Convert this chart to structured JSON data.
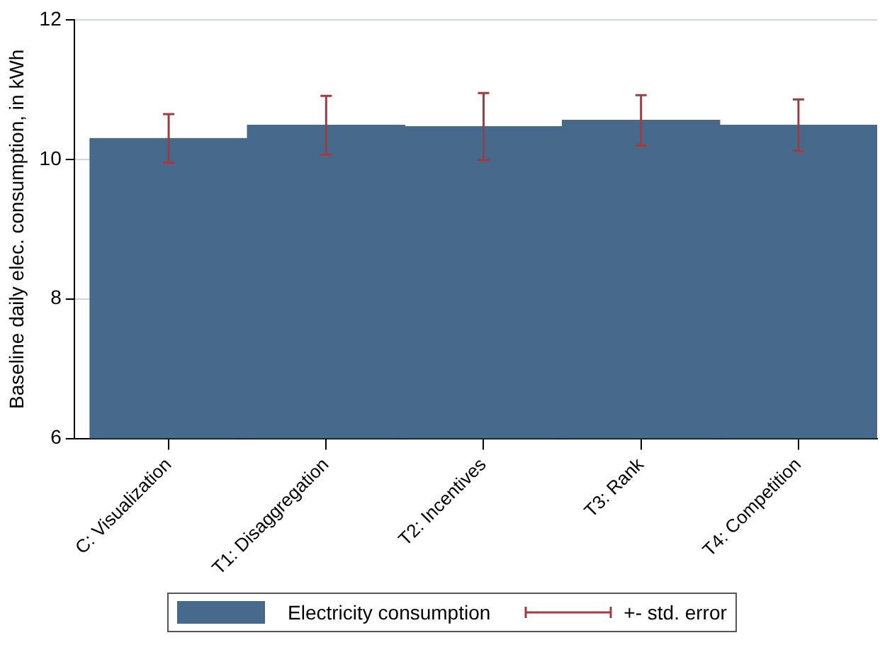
{
  "chart_data": {
    "type": "bar",
    "ylabel": "Baseline daily elec. consumption, in kWh",
    "categories": [
      "C: Visualization",
      "T1: Disaggregation",
      "T2: Incentives",
      "T3: Rank",
      "T4: Competition"
    ],
    "series": [
      {
        "name": "Electricity consumption",
        "color": "#476a8c",
        "values": [
          10.3,
          10.49,
          10.47,
          10.56,
          10.49
        ],
        "errors": [
          0.35,
          0.42,
          0.48,
          0.36,
          0.37
        ]
      }
    ],
    "ylim": [
      6,
      12
    ],
    "yticks": [
      6,
      8,
      10,
      12
    ],
    "grid": "y",
    "legend": "bottom",
    "annotations": [
      "+- std. error"
    ]
  }
}
